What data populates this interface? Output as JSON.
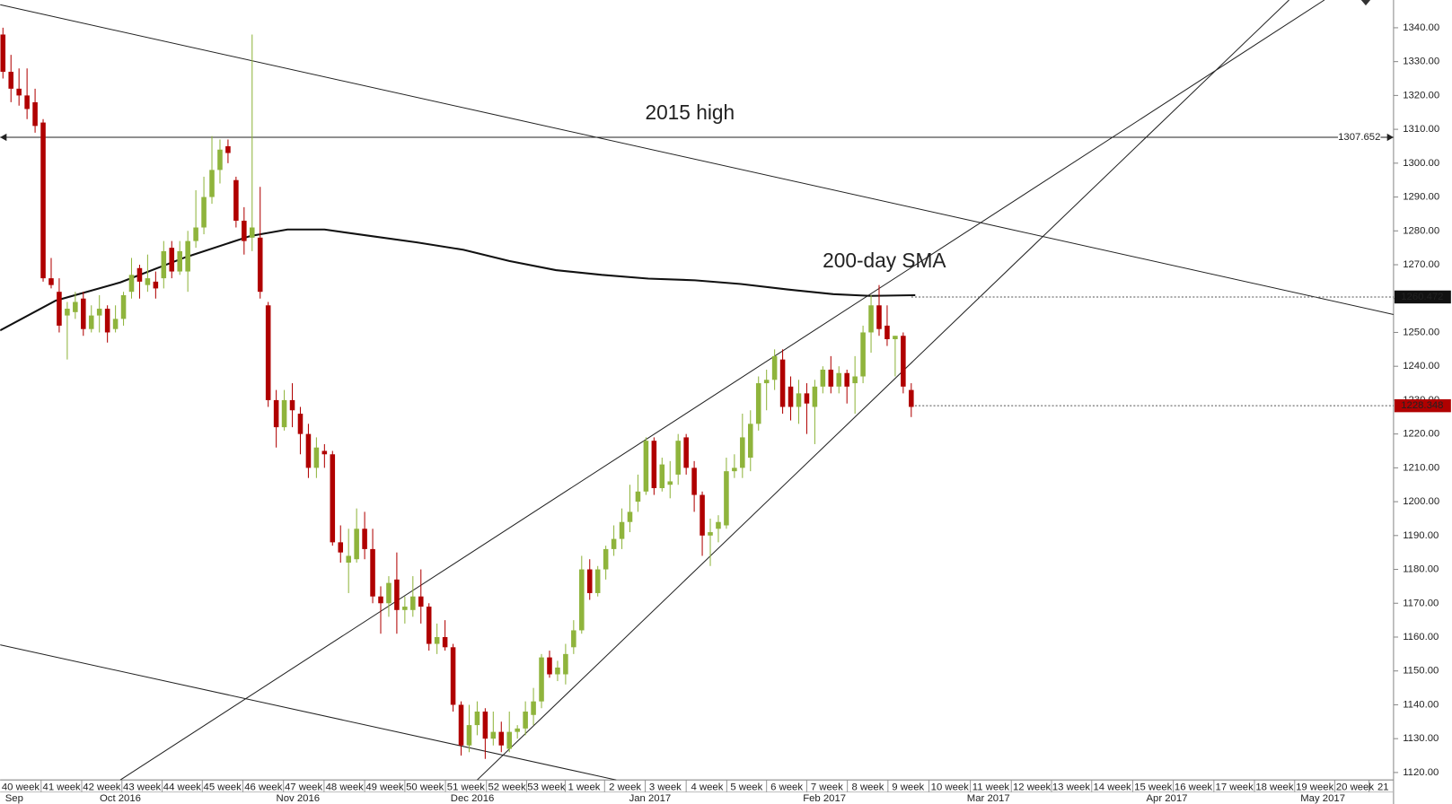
{
  "chart_data": {
    "type": "candlestick",
    "up_color": "#8fb43c",
    "down_color": "#b00000",
    "open": [
      1338,
      1327,
      1322,
      1320,
      1318,
      1312,
      1266,
      1262,
      1255,
      1256,
      1260,
      1251,
      1255,
      1257,
      1251,
      1254,
      1262,
      1269,
      1264,
      1265,
      1266,
      1275,
      1268,
      1268,
      1277,
      1281,
      1290,
      1298,
      1305,
      1295,
      1283,
      1278,
      1278,
      1258,
      1230,
      1222,
      1230,
      1226,
      1220,
      1210,
      1215,
      1214,
      1188,
      1182,
      1183,
      1192,
      1186,
      1172,
      1170,
      1177,
      1168,
      1168,
      1172,
      1169,
      1158,
      1160,
      1157,
      1140,
      1128,
      1134,
      1138,
      1130,
      1132,
      1127,
      1132,
      1133,
      1137,
      1141,
      1154,
      1149,
      1149,
      1157,
      1162,
      1180,
      1173,
      1180,
      1186,
      1189,
      1194,
      1200,
      1203,
      1218,
      1204,
      1205,
      1208,
      1219,
      1210,
      1202,
      1190,
      1192,
      1193,
      1209,
      1210,
      1213,
      1223,
      1235,
      1236,
      1242,
      1234,
      1228,
      1232,
      1228,
      1234,
      1239,
      1234,
      1238,
      1235,
      1237,
      1250,
      1258,
      1252,
      1248,
      1249,
      1233
    ],
    "high": [
      1340,
      1332,
      1328,
      1328,
      1322,
      1313,
      1272,
      1266,
      1259,
      1262,
      1262,
      1258,
      1261,
      1258,
      1258,
      1262,
      1272,
      1270,
      1273,
      1268,
      1277,
      1277,
      1277,
      1280,
      1292,
      1296,
      1308,
      1307,
      1307,
      1296,
      1287,
      1338,
      1293,
      1259,
      1233,
      1233,
      1235,
      1228,
      1223,
      1219,
      1217,
      1215,
      1193,
      1192,
      1198,
      1197,
      1192,
      1175,
      1178,
      1185,
      1172,
      1178,
      1180,
      1170,
      1164,
      1165,
      1158,
      1141,
      1140,
      1141,
      1139,
      1138,
      1135,
      1138,
      1134,
      1141,
      1145,
      1155,
      1156,
      1153,
      1158,
      1165,
      1184,
      1183,
      1181,
      1187,
      1193,
      1198,
      1205,
      1208,
      1219,
      1219,
      1213,
      1212,
      1220,
      1220,
      1212,
      1203,
      1195,
      1196,
      1213,
      1214,
      1226,
      1227,
      1237,
      1239,
      1245,
      1245,
      1237,
      1236,
      1235,
      1236,
      1240,
      1243,
      1240,
      1239,
      1243,
      1252,
      1261,
      1264,
      1258,
      1249,
      1250,
      1235
    ],
    "low": [
      1325,
      1318,
      1317,
      1313,
      1309,
      1265,
      1263,
      1250,
      1242,
      1254,
      1249,
      1250,
      1250,
      1247,
      1250,
      1252,
      1260,
      1260,
      1262,
      1260,
      1263,
      1266,
      1267,
      1262,
      1275,
      1279,
      1288,
      1294,
      1300,
      1281,
      1273,
      1274,
      1260,
      1228,
      1216,
      1221,
      1222,
      1214,
      1207,
      1207,
      1210,
      1187,
      1182,
      1173,
      1182,
      1183,
      1170,
      1161,
      1166,
      1161,
      1164,
      1166,
      1164,
      1156,
      1155,
      1156,
      1138,
      1125,
      1126,
      1131,
      1124,
      1128,
      1126,
      1126,
      1130,
      1131,
      1134,
      1139,
      1148,
      1147,
      1146,
      1155,
      1161,
      1171,
      1172,
      1177,
      1184,
      1186,
      1191,
      1197,
      1202,
      1202,
      1203,
      1201,
      1205,
      1208,
      1197,
      1184,
      1181,
      1188,
      1192,
      1207,
      1207,
      1209,
      1221,
      1227,
      1233,
      1226,
      1224,
      1223,
      1220,
      1217,
      1232,
      1232,
      1232,
      1229,
      1226,
      1235,
      1244,
      1249,
      1246,
      1237,
      1232,
      1225
    ],
    "close": [
      1327,
      1322,
      1320,
      1316,
      1311,
      1266,
      1264,
      1252,
      1257,
      1259,
      1251,
      1255,
      1257,
      1250,
      1254,
      1261,
      1267,
      1265,
      1266,
      1263,
      1274,
      1268,
      1274,
      1277,
      1281,
      1290,
      1298,
      1304,
      1303,
      1283,
      1277,
      1281,
      1262,
      1230,
      1222,
      1230,
      1227,
      1220,
      1210,
      1216,
      1214,
      1188,
      1185,
      1184,
      1192,
      1186,
      1172,
      1170,
      1176,
      1168,
      1169,
      1172,
      1169,
      1158,
      1160,
      1157,
      1140,
      1128,
      1134,
      1138,
      1130,
      1132,
      1128,
      1132,
      1133,
      1138,
      1141,
      1154,
      1149,
      1151,
      1155,
      1162,
      1180,
      1173,
      1180,
      1186,
      1189,
      1194,
      1197,
      1203,
      1218,
      1204,
      1211,
      1206,
      1218,
      1210,
      1202,
      1190,
      1191,
      1194,
      1209,
      1210,
      1219,
      1223,
      1235,
      1236,
      1243,
      1228,
      1228,
      1232,
      1229,
      1234,
      1239,
      1234,
      1238,
      1234,
      1237,
      1250,
      1258,
      1251,
      1248,
      1249,
      1234,
      1228
    ],
    "xlim": [
      -0.35,
      173
    ],
    "ylim": [
      1117.8,
      1348.2
    ],
    "yticks": [
      {
        "value": 1120,
        "label": "1120.00"
      },
      {
        "value": 1130,
        "label": "1130.00"
      },
      {
        "value": 1140,
        "label": "1140.00"
      },
      {
        "value": 1150,
        "label": "1150.00"
      },
      {
        "value": 1160,
        "label": "1160.00"
      },
      {
        "value": 1170,
        "label": "1170.00"
      },
      {
        "value": 1180,
        "label": "1180.00"
      },
      {
        "value": 1190,
        "label": "1190.00"
      },
      {
        "value": 1200,
        "label": "1200.00"
      },
      {
        "value": 1210,
        "label": "1210.00"
      },
      {
        "value": 1220,
        "label": "1220.00"
      },
      {
        "value": 1230,
        "label": "1230.00"
      },
      {
        "value": 1240,
        "label": "1240.00"
      },
      {
        "value": 1250,
        "label": "1250.00"
      },
      {
        "value": 1260,
        "label": "1260.00"
      },
      {
        "value": 1270,
        "label": "1270.00"
      },
      {
        "value": 1280,
        "label": "1280.00"
      },
      {
        "value": 1290,
        "label": "1290.00"
      },
      {
        "value": 1300,
        "label": "1300.00"
      },
      {
        "value": 1310,
        "label": "1310.00"
      },
      {
        "value": 1320,
        "label": "1320.00"
      },
      {
        "value": 1330,
        "label": "1330.00"
      },
      {
        "value": 1340,
        "label": "1340.00"
      }
    ],
    "xticks": [
      {
        "value": 2.2,
        "label": "40 week"
      },
      {
        "value": 7.3,
        "label": "41 week"
      },
      {
        "value": 12.3,
        "label": "42 week"
      },
      {
        "value": 17.3,
        "label": "43 week"
      },
      {
        "value": 22.3,
        "label": "44 week"
      },
      {
        "value": 27.3,
        "label": "45 week"
      },
      {
        "value": 32.4,
        "label": "46 week"
      },
      {
        "value": 37.4,
        "label": "47 week"
      },
      {
        "value": 42.5,
        "label": "48 week"
      },
      {
        "value": 47.5,
        "label": "49 week"
      },
      {
        "value": 52.5,
        "label": "50 week"
      },
      {
        "value": 57.6,
        "label": "51 week"
      },
      {
        "value": 62.7,
        "label": "52 week"
      },
      {
        "value": 67.6,
        "label": "53 week"
      },
      {
        "value": 72.3,
        "label": "1 week"
      },
      {
        "value": 77.4,
        "label": "2 week"
      },
      {
        "value": 82.4,
        "label": "3 week"
      },
      {
        "value": 87.6,
        "label": "4 week"
      },
      {
        "value": 92.5,
        "label": "5 week"
      },
      {
        "value": 97.5,
        "label": "6 week"
      },
      {
        "value": 102.5,
        "label": "7 week"
      },
      {
        "value": 107.6,
        "label": "8 week"
      },
      {
        "value": 112.6,
        "label": "9 week"
      },
      {
        "value": 117.8,
        "label": "10 week"
      },
      {
        "value": 122.9,
        "label": "11 week"
      },
      {
        "value": 128.0,
        "label": "12 week"
      },
      {
        "value": 132.9,
        "label": "13 week"
      },
      {
        "value": 138.0,
        "label": "14 week"
      },
      {
        "value": 143.1,
        "label": "15 week"
      },
      {
        "value": 148.1,
        "label": "16 week"
      },
      {
        "value": 153.2,
        "label": "17 week"
      },
      {
        "value": 158.2,
        "label": "18 week"
      },
      {
        "value": 163.2,
        "label": "19 week"
      },
      {
        "value": 168.2,
        "label": "20 week"
      },
      {
        "value": 171.7,
        "label": "21"
      }
    ],
    "months": [
      {
        "value": 1.4,
        "label": "Sep"
      },
      {
        "value": 14.6,
        "label": "Oct 2016"
      },
      {
        "value": 36.7,
        "label": "Nov 2016"
      },
      {
        "value": 58.4,
        "label": "Dec 2016"
      },
      {
        "value": 80.5,
        "label": "Jan 2017"
      },
      {
        "value": 102.2,
        "label": "Feb 2017"
      },
      {
        "value": 122.6,
        "label": "Mar 2017"
      },
      {
        "value": 144.8,
        "label": "Apr 2017"
      },
      {
        "value": 164.2,
        "label": "May 2017"
      }
    ],
    "sma": {
      "color": "#111111",
      "x": [
        -0.35,
        6.57,
        14.63,
        22.7,
        30.8,
        35.4,
        40,
        45.7,
        51.5,
        57.3,
        63,
        68.8,
        74.5,
        80.3,
        86.1,
        91.8,
        97.6,
        103.3,
        107.9,
        113.5
      ],
      "values": [
        1250.6,
        1259.4,
        1264.8,
        1272.2,
        1278.5,
        1280.4,
        1280.4,
        1278.5,
        1276.6,
        1274.4,
        1271.1,
        1268.4,
        1267.0,
        1265.9,
        1265.4,
        1264.3,
        1262.7,
        1261.3,
        1260.8,
        1261.0
      ]
    },
    "trendlines": [
      {
        "x": [
          -0.35,
          173
        ],
        "values": [
          1346.8,
          1255.3
        ]
      },
      {
        "x": [
          -0.35,
          76.3
        ],
        "values": [
          1157.7,
          1117.8
        ]
      },
      {
        "x": [
          14.6,
          164.4
        ],
        "values": [
          1117.8,
          1348.2
        ]
      },
      {
        "x": [
          59,
          160
        ],
        "values": [
          1117.8,
          1348.2
        ]
      }
    ],
    "hlines": [
      {
        "value": 1307.652,
        "label": "1307.652",
        "style": "solid"
      },
      {
        "value": 1260.472,
        "label": "1260.472",
        "style": "dotted",
        "color": "#111111"
      },
      {
        "value": 1228.348,
        "label": "1228.348",
        "style": "dotted",
        "color": "#b00000"
      }
    ],
    "annotations": [
      "2015 high",
      "200-day SMA"
    ]
  }
}
